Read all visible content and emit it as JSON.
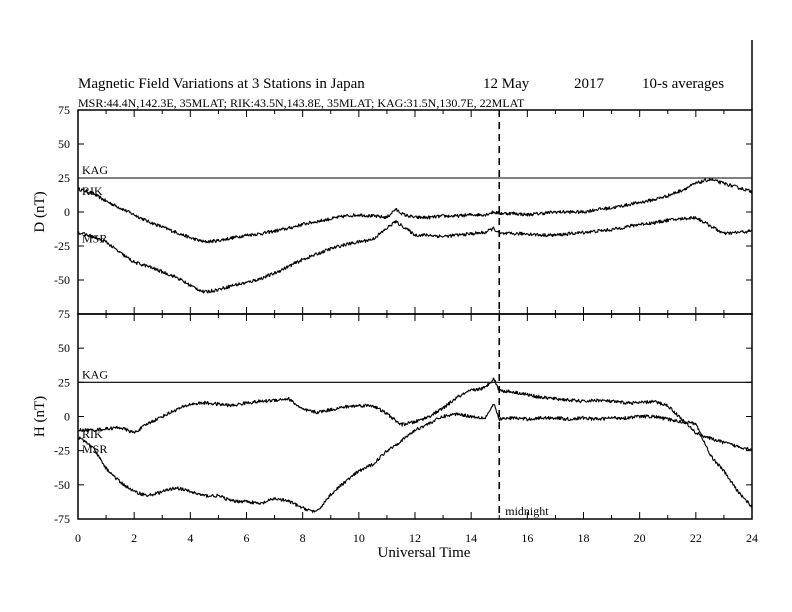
{
  "chart_data": {
    "type": "line",
    "title": "Magnetic Field Variations at 3 Stations in Japan",
    "date": "12 May",
    "year": "2017",
    "averaging": "10-s averages",
    "stations_info": "MSR:44.4N,142.3E, 35MLAT;  RIK:43.5N,143.8E, 35MLAT;  KAG:31.5N,130.7E, 22MLAT",
    "xlabel": "Universal Time",
    "xlim": [
      0,
      24
    ],
    "x_ticks": [
      0,
      2,
      4,
      6,
      8,
      10,
      12,
      14,
      16,
      18,
      20,
      22,
      24
    ],
    "annotation": {
      "x": 15,
      "label": "midnight",
      "style": "dashed"
    },
    "panels": [
      {
        "id": "D",
        "ylabel": "D (nT)",
        "ylim": [
          -75,
          75
        ],
        "y_ticks": [
          75,
          50,
          25,
          0,
          -25,
          -50,
          -75
        ],
        "series": [
          {
            "name": "KAG",
            "x": [
              0,
              24
            ],
            "values": [
              25,
              25
            ]
          },
          {
            "name": "RIK",
            "x": [
              0,
              0.5,
              1,
              1.5,
              2,
              2.5,
              3,
              3.5,
              4,
              4.5,
              5,
              5.5,
              6,
              6.5,
              7,
              7.5,
              8,
              8.5,
              9,
              9.5,
              10,
              10.5,
              11,
              11.3,
              11.6,
              12,
              12.5,
              13,
              13.5,
              14,
              14.5,
              14.8,
              15,
              15.5,
              16,
              16.5,
              17,
              17.5,
              18,
              18.5,
              19,
              19.5,
              20,
              20.5,
              21,
              21.5,
              22,
              22.5,
              23,
              23.5,
              24
            ],
            "values": [
              17,
              14,
              8,
              3,
              -2,
              -7,
              -11,
              -15,
              -19,
              -22,
              -21,
              -19,
              -17,
              -16,
              -14,
              -12,
              -9,
              -7,
              -5,
              -3,
              -2,
              -3,
              -4,
              2,
              -2,
              -4,
              -4,
              -3,
              -3,
              -2,
              -2,
              0,
              -1,
              -1,
              -2,
              -1,
              0,
              0,
              0,
              2,
              3,
              5,
              7,
              9,
              12,
              16,
              21,
              24,
              21,
              18,
              15
            ]
          },
          {
            "name": "MSR",
            "x": [
              0,
              0.5,
              1,
              1.5,
              2,
              2.5,
              3,
              3.5,
              4,
              4.5,
              5,
              5.5,
              6,
              6.5,
              7,
              7.5,
              8,
              8.5,
              9,
              9.5,
              10,
              10.5,
              11,
              11.3,
              11.6,
              12,
              12.5,
              13,
              13.5,
              14,
              14.5,
              14.8,
              15,
              15.5,
              16,
              16.5,
              17,
              17.5,
              18,
              18.5,
              19,
              19.5,
              20,
              20.5,
              21,
              21.5,
              22,
              22.5,
              23,
              23.5,
              24
            ],
            "values": [
              -15,
              -18,
              -22,
              -30,
              -37,
              -40,
              -44,
              -48,
              -54,
              -59,
              -57,
              -54,
              -52,
              -49,
              -45,
              -40,
              -35,
              -31,
              -27,
              -24,
              -22,
              -20,
              -12,
              -7,
              -11,
              -17,
              -17,
              -18,
              -17,
              -16,
              -15,
              -12,
              -16,
              -16,
              -16,
              -17,
              -17,
              -16,
              -15,
              -14,
              -13,
              -11,
              -9,
              -8,
              -6,
              -5,
              -4,
              -10,
              -16,
              -15,
              -14
            ]
          }
        ]
      },
      {
        "id": "H",
        "ylabel": "H (nT)",
        "ylim": [
          -75,
          75
        ],
        "y_ticks": [
          75,
          50,
          25,
          0,
          -25,
          -50,
          -75
        ],
        "series": [
          {
            "name": "KAG",
            "x": [
              0,
              24
            ],
            "values": [
              25,
              25
            ]
          },
          {
            "name": "RIK",
            "x": [
              0,
              0.5,
              1,
              1.5,
              2,
              2.5,
              3,
              3.5,
              4,
              4.5,
              5,
              5.5,
              6,
              6.5,
              7,
              7.5,
              8,
              8.5,
              9,
              9.5,
              10,
              10.5,
              11,
              11.5,
              12,
              12.5,
              13,
              13.5,
              14,
              14.5,
              14.8,
              15,
              15.5,
              16,
              16.5,
              17,
              17.5,
              18,
              18.5,
              19,
              19.5,
              20,
              20.5,
              21,
              21.5,
              22,
              22.5,
              23,
              23.5,
              24
            ],
            "values": [
              -10,
              -10,
              -9,
              -8,
              -12,
              -5,
              0,
              5,
              9,
              10,
              9,
              8,
              10,
              11,
              12,
              13,
              5,
              3,
              5,
              7,
              8,
              8,
              2,
              -6,
              -4,
              0,
              6,
              14,
              19,
              21,
              28,
              19,
              18,
              16,
              14,
              13,
              12,
              11,
              12,
              11,
              10,
              10,
              11,
              8,
              -2,
              -12,
              -16,
              -19,
              -22,
              -24
            ]
          },
          {
            "name": "MSR",
            "x": [
              0,
              0.5,
              1,
              1.5,
              2,
              2.5,
              3,
              3.5,
              4,
              4.5,
              5,
              5.5,
              6,
              6.5,
              7,
              7.5,
              8,
              8.5,
              9,
              9.5,
              10,
              10.5,
              11,
              11.5,
              12,
              12.5,
              13,
              13.5,
              14,
              14.5,
              14.8,
              15,
              15.5,
              16,
              16.5,
              17,
              17.5,
              18,
              18.5,
              19,
              19.5,
              20,
              20.5,
              21,
              21.5,
              22,
              22.5,
              23,
              23.5,
              24
            ],
            "values": [
              -15,
              -22,
              -38,
              -48,
              -55,
              -58,
              -55,
              -52,
              -55,
              -58,
              -58,
              -62,
              -62,
              -64,
              -60,
              -62,
              -67,
              -70,
              -57,
              -48,
              -40,
              -35,
              -25,
              -18,
              -10,
              -5,
              0,
              2,
              0,
              -1,
              9,
              -2,
              -1,
              -2,
              -1,
              -1,
              -2,
              -1,
              -2,
              -1,
              -1,
              0,
              0,
              -2,
              -4,
              -5,
              -28,
              -40,
              -55,
              -66
            ]
          }
        ]
      }
    ]
  }
}
